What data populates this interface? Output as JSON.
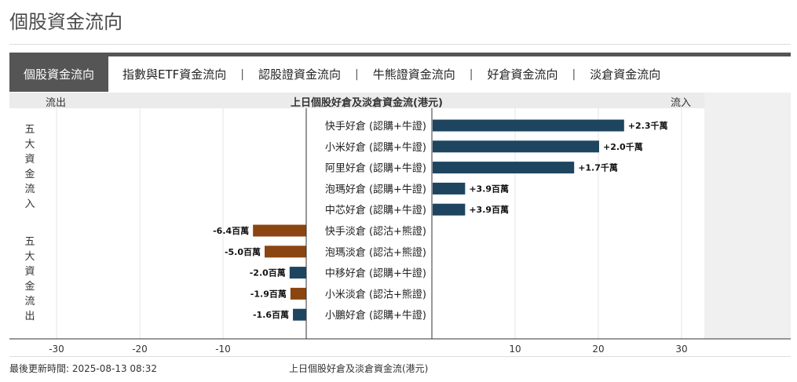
{
  "page": {
    "title": "個股資金流向"
  },
  "tabs": [
    {
      "label": "個股資金流向",
      "active": true
    },
    {
      "label": "指數與ETF資金流向",
      "active": false
    },
    {
      "label": "認股證資金流向",
      "active": false
    },
    {
      "label": "牛熊證資金流向",
      "active": false
    },
    {
      "label": "好倉資金流向",
      "active": false
    },
    {
      "label": "淡倉資金流向",
      "active": false
    }
  ],
  "tab_separator": "|",
  "chart_header": {
    "left": "流出",
    "center": "上日個股好倉及淡倉資金流(港元)",
    "right": "流入"
  },
  "groups": {
    "inflow_label": "五大資金流入",
    "outflow_label": "五大資金流出"
  },
  "colors": {
    "blue": "#1d4560",
    "brown": "#8b4510"
  },
  "chart_data": {
    "type": "bar",
    "orientation": "horizontal",
    "title": "上日個股好倉及淡倉資金流(港元)",
    "xlim": [
      -30,
      30
    ],
    "xticks": [
      -30,
      -20,
      -10,
      10,
      20,
      30
    ],
    "categories": [
      "快手好倉 (認購+牛證)",
      "小米好倉 (認購+牛證)",
      "阿里好倉 (認購+牛證)",
      "泡瑪好倉 (認購+牛證)",
      "中芯好倉 (認購+牛證)",
      "快手淡倉 (認沽+熊證)",
      "泡瑪淡倉 (認沽+熊證)",
      "中移好倉 (認購+牛證)",
      "小米淡倉 (認沽+熊證)",
      "小鵬好倉 (認購+牛證)"
    ],
    "values": [
      23,
      20,
      17,
      3.9,
      3.9,
      -6.4,
      -5.0,
      -2.0,
      -1.9,
      -1.6
    ],
    "value_labels": [
      "+2.3千萬",
      "+2.0千萬",
      "+1.7千萬",
      "+3.9百萬",
      "+3.9百萬",
      "-6.4百萬",
      "-5.0百萬",
      "-2.0百萬",
      "-1.9百萬",
      "-1.6百萬"
    ],
    "bar_colors": [
      "blue",
      "blue",
      "blue",
      "blue",
      "blue",
      "brown",
      "brown",
      "blue",
      "brown",
      "blue"
    ],
    "unit": "百萬港元"
  },
  "footer": {
    "update": "最後更新時間: 2025-08-13 08:32",
    "note": "上日個股好倉及淡倉資金流(港元)"
  }
}
